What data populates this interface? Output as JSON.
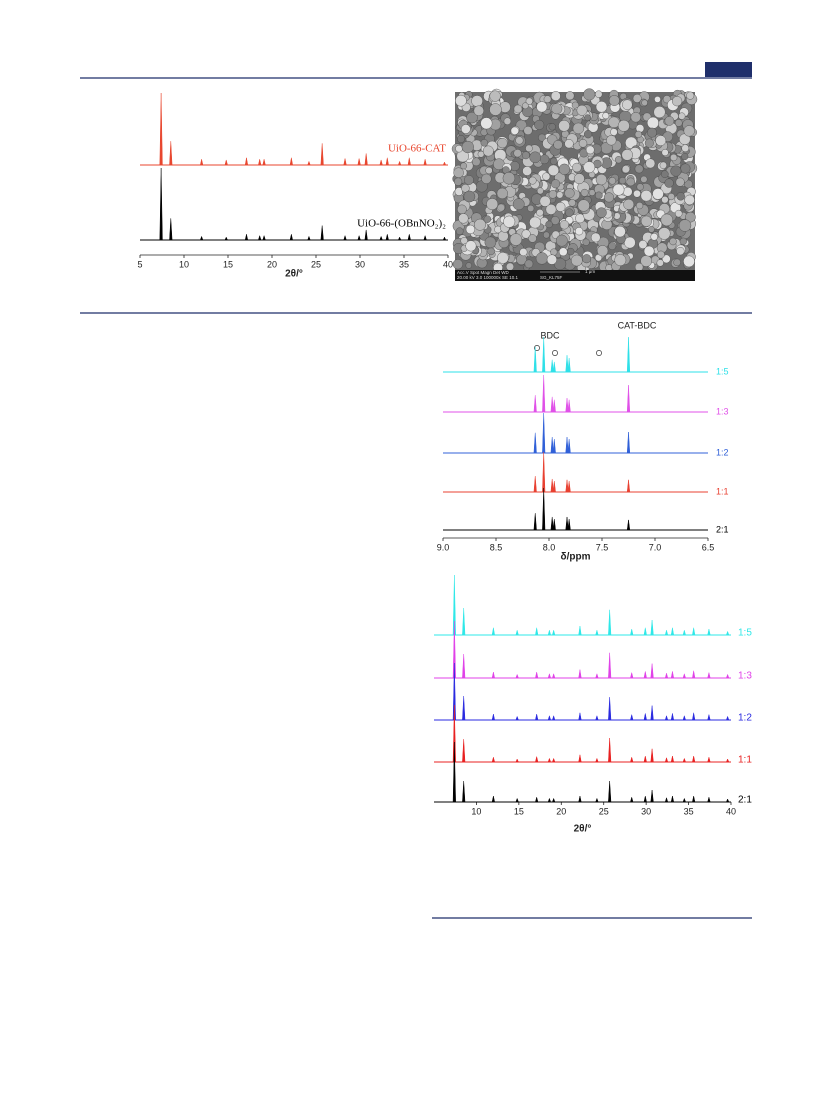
{
  "chart_data": [
    {
      "type": "spectrum",
      "x_label": "2θ/°",
      "xlim": [
        5,
        40
      ],
      "xticks": [
        5,
        10,
        15,
        20,
        25,
        30,
        35,
        40
      ],
      "x": [
        7.4,
        8.5,
        12.0,
        14.8,
        17.1,
        18.6,
        19.1,
        22.2,
        24.2,
        25.7,
        28.3,
        29.9,
        30.7,
        32.4,
        33.1,
        34.5,
        35.6,
        37.4,
        39.6
      ],
      "series": [
        {
          "name": "UiO-66-CAT",
          "color": "#e8462e",
          "values": [
            100,
            33,
            8,
            7,
            10,
            8,
            8,
            10,
            5,
            30,
            9,
            9,
            16,
            7,
            10,
            5,
            10,
            8,
            4
          ]
        },
        {
          "name": "UiO-66-(OBnNO₂)₂",
          "color": "#000000",
          "values": [
            100,
            30,
            5,
            4,
            8,
            6,
            6,
            8,
            5,
            20,
            6,
            6,
            14,
            5,
            8,
            4,
            8,
            6,
            4
          ]
        }
      ]
    },
    {
      "type": "spectrum",
      "x_label": "δ/ppm",
      "annotations": [
        "BDC",
        "CAT-BDC"
      ],
      "xlim": [
        9,
        6.5
      ],
      "xticks": [
        {
          "value": 9,
          "label": "9.0"
        },
        8.5,
        {
          "value": 8,
          "label": "8.0"
        },
        7.5,
        {
          "value": 7,
          "label": "7.0"
        },
        6.5
      ],
      "x": [
        8.13,
        8.05,
        7.97,
        7.95,
        7.83,
        7.81,
        7.25
      ],
      "series": [
        {
          "name": "1:5",
          "color": "#2ee0e8",
          "values": [
            60,
            83,
            29,
            24,
            40,
            33,
            83
          ]
        },
        {
          "name": "1:3",
          "color": "#e050e8",
          "values": [
            40,
            88,
            36,
            29,
            33,
            29,
            64
          ]
        },
        {
          "name": "1:2",
          "color": "#3060d8",
          "values": [
            48,
            95,
            38,
            33,
            38,
            33,
            50
          ]
        },
        {
          "name": "1:1",
          "color": "#e84030",
          "values": [
            38,
            95,
            31,
            26,
            29,
            26,
            29
          ]
        },
        {
          "name": "2:1",
          "color": "#000000",
          "values": [
            40,
            100,
            31,
            26,
            31,
            26,
            24
          ]
        }
      ]
    },
    {
      "type": "spectrum",
      "x_label": "2θ/°",
      "xlim": [
        5,
        40
      ],
      "xticks": [
        10,
        15,
        20,
        25,
        30,
        35,
        40
      ],
      "x": [
        7.4,
        8.5,
        12.0,
        14.8,
        17.1,
        18.6,
        19.1,
        22.2,
        24.2,
        25.7,
        28.3,
        29.9,
        30.7,
        32.4,
        33.1,
        34.5,
        35.6,
        37.4,
        39.6
      ],
      "series": [
        {
          "name": "1:5",
          "color": "#2ee8e8",
          "values": [
            100,
            45,
            12,
            8,
            12,
            8,
            8,
            15,
            8,
            42,
            10,
            12,
            25,
            8,
            12,
            8,
            12,
            10,
            6
          ]
        },
        {
          "name": "1:3",
          "color": "#e040e8",
          "values": [
            95,
            40,
            10,
            6,
            10,
            7,
            7,
            14,
            7,
            42,
            9,
            11,
            24,
            8,
            11,
            7,
            12,
            9,
            6
          ]
        },
        {
          "name": "1:2",
          "color": "#2a2ae0",
          "values": [
            95,
            40,
            10,
            6,
            10,
            7,
            7,
            12,
            7,
            38,
            9,
            11,
            24,
            7,
            11,
            7,
            12,
            9,
            6
          ]
        },
        {
          "name": "1:1",
          "color": "#e82020",
          "values": [
            95,
            38,
            8,
            5,
            9,
            6,
            6,
            12,
            6,
            40,
            8,
            10,
            22,
            7,
            10,
            6,
            10,
            8,
            5
          ]
        },
        {
          "name": "2:1",
          "color": "#000000",
          "values": [
            100,
            35,
            10,
            6,
            8,
            6,
            6,
            10,
            6,
            35,
            8,
            10,
            20,
            7,
            10,
            6,
            10,
            8,
            5
          ]
        }
      ]
    }
  ],
  "sem_image": {
    "info": [
      "Acc.V   Spot Magn   Det  WD",
      "20.00 kV 3.0 100000x  SE  10.1",
      "1 μm",
      "SG_KL75F"
    ]
  }
}
